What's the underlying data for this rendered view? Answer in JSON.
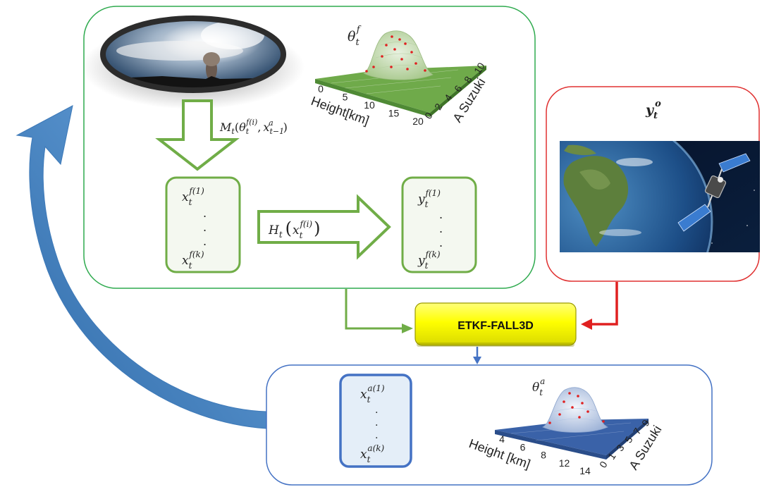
{
  "forecast_model": {
    "operator": {
      "sym": "M",
      "sub": "t",
      "arg1": "θ",
      "arg1_sub": "t",
      "arg1_sup": "f(i)",
      "sep": ",",
      "arg2": "x",
      "arg2_sub": "t−1",
      "arg2_sup": "a"
    }
  },
  "observation_operator": {
    "sym": "H",
    "sub": "t",
    "arg": "x",
    "arg_sub": "t",
    "arg_sup": "f(i)"
  },
  "forecast_ensemble": {
    "first_base": "x",
    "first_sub": "t",
    "first_sup": "f(1)",
    "last_base": "x",
    "last_sub": "t",
    "last_sup": "f(k)"
  },
  "obs_ensemble": {
    "first_base": "y",
    "first_sub": "t",
    "first_sup": "f(1)",
    "last_base": "y",
    "last_sub": "t",
    "last_sup": "f(k)"
  },
  "analysis_ensemble": {
    "first_base": "x",
    "first_sub": "t",
    "first_sup": "a(1)",
    "last_base": "x",
    "last_sub": "t",
    "last_sup": "a(k)"
  },
  "observation": {
    "base": "y",
    "sub": "t",
    "sup": "o"
  },
  "filter": {
    "label": "ETKF-FALL3D"
  },
  "forecast_param_plot": {
    "title_base": "θ",
    "title_sub": "t",
    "title_sup": "f",
    "xlabel": "Height[km]",
    "ylabel": "A Suzuki",
    "xticks": [
      "0",
      "5",
      "10",
      "15",
      "20"
    ],
    "yticks": [
      "0",
      "2",
      "4",
      "6",
      "8",
      "10"
    ]
  },
  "analysis_param_plot": {
    "title_base": "θ",
    "title_sub": "t",
    "title_sup": "a",
    "xlabel": "Height [km]",
    "ylabel": "A Suzuki",
    "xticks": [
      "4",
      "6",
      "8",
      "12",
      "14"
    ],
    "yticks": [
      "0",
      "1",
      "3",
      "5",
      "7",
      "9"
    ]
  },
  "colors": {
    "forecast_border": "#2eaa4e",
    "arrow_green": "#70ad47",
    "obs_border": "#e03030",
    "analysis_border": "#4472c4",
    "filter_fill": "#ffff00",
    "cycle_arrow": "#4a86c5",
    "forecast_surface": "#6faa4a",
    "analysis_surface": "#3a62a8",
    "sample_dots": "#e02020"
  },
  "icons": [
    "volcano-eruption-image",
    "earth-satellite-image"
  ]
}
